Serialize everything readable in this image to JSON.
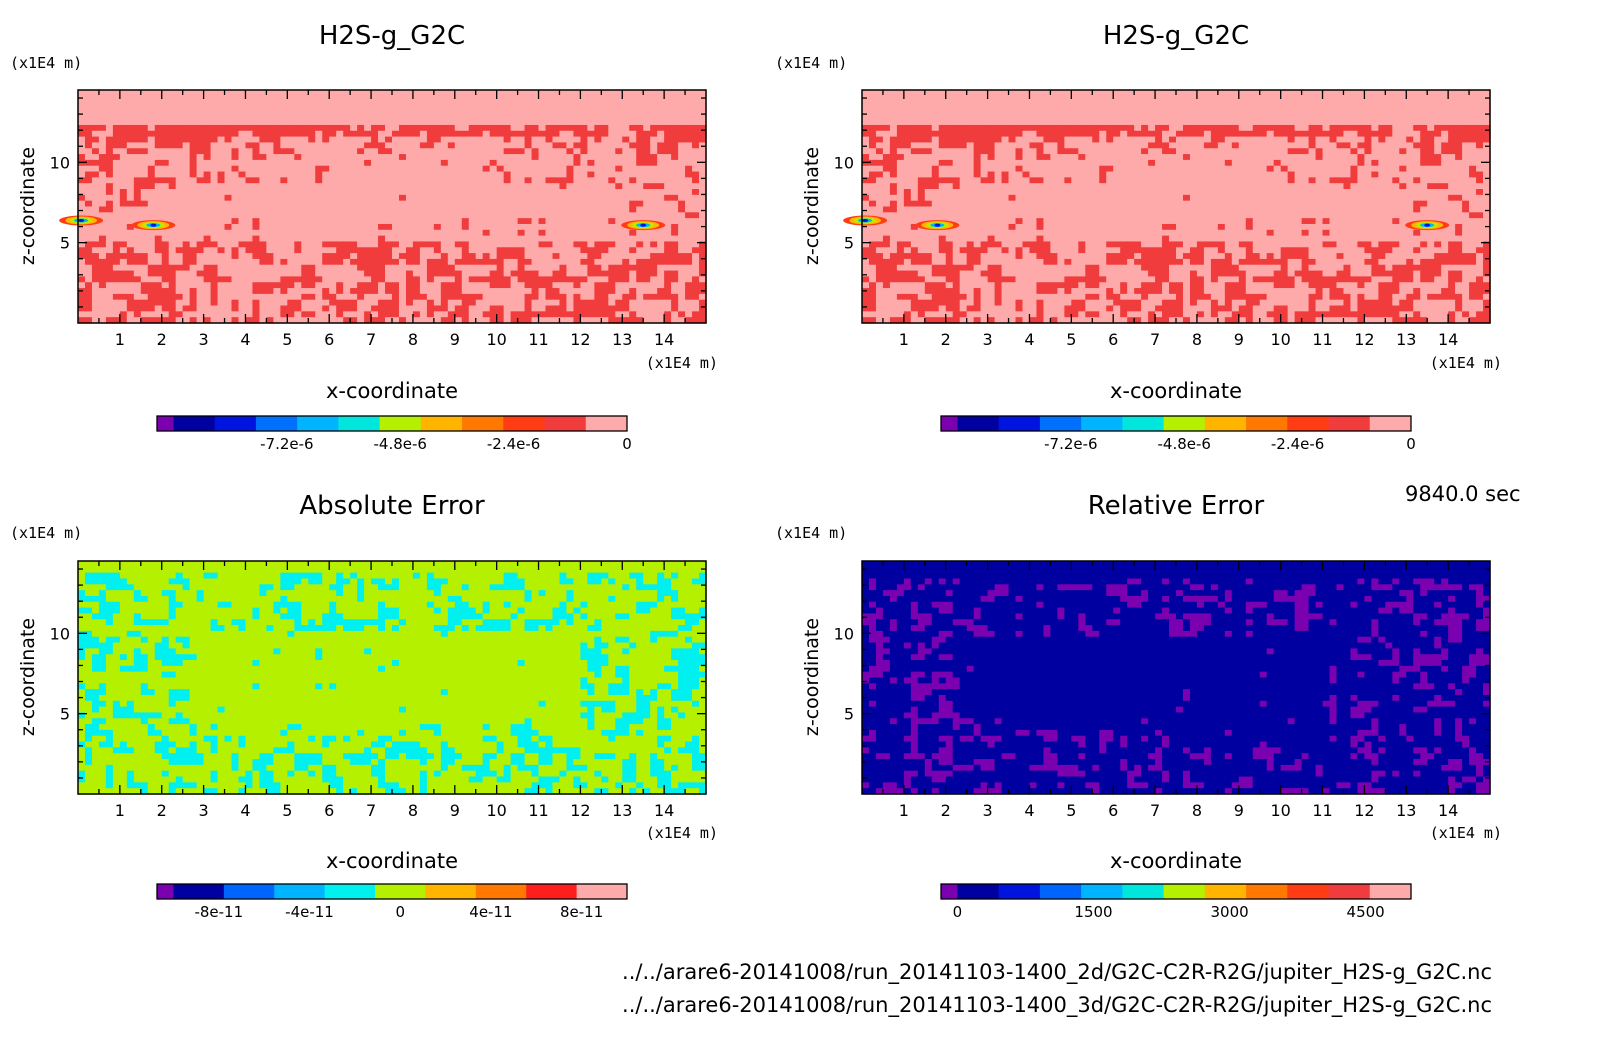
{
  "time_label": "9840.0 sec",
  "footer": {
    "file1": "../../arare6-20141008/run_20141103-1400_2d/G2C-C2R-R2G/jupiter_H2S-g_G2C.nc",
    "file2": "../../arare6-20141008/run_20141103-1400_3d/G2C-C2R-R2G/jupiter_H2S-g_G2C.nc"
  },
  "chart_data": [
    {
      "type": "heatmap",
      "title": "H2S-g_G2C",
      "xlabel": "x-coordinate",
      "ylabel": "z-coordinate",
      "x_unit": "(x1E4 m)",
      "y_unit": "(x1E4 m)",
      "xlim": [
        0,
        15
      ],
      "ylim": [
        0,
        14.5
      ],
      "x_ticks": [
        1,
        2,
        3,
        4,
        5,
        6,
        7,
        8,
        9,
        10,
        11,
        12,
        13,
        14
      ],
      "y_ticks": [
        5,
        10
      ],
      "pattern": "field",
      "colorbar": {
        "colors": [
          "#7a00b0",
          "#0000a0",
          "#0014e0",
          "#0070ff",
          "#00b4ff",
          "#00e6dc",
          "#b4f000",
          "#ffb400",
          "#ff7800",
          "#ff3c14",
          "#f03c3c",
          "#ffaaaa"
        ],
        "tick_labels": [
          "-7.2e-6",
          "-4.8e-6",
          "-2.4e-6",
          "0"
        ],
        "tick_values": [
          -7.2e-06,
          -4.8e-06,
          -2.4e-06,
          0
        ],
        "range": [
          -9.6e-06,
          0
        ]
      }
    },
    {
      "type": "heatmap",
      "title": "H2S-g_G2C",
      "xlabel": "x-coordinate",
      "ylabel": "z-coordinate",
      "x_unit": "(x1E4 m)",
      "y_unit": "(x1E4 m)",
      "xlim": [
        0,
        15
      ],
      "ylim": [
        0,
        14.5
      ],
      "x_ticks": [
        1,
        2,
        3,
        4,
        5,
        6,
        7,
        8,
        9,
        10,
        11,
        12,
        13,
        14
      ],
      "y_ticks": [
        5,
        10
      ],
      "pattern": "field",
      "colorbar": {
        "colors": [
          "#7a00b0",
          "#0000a0",
          "#0014e0",
          "#0070ff",
          "#00b4ff",
          "#00e6dc",
          "#b4f000",
          "#ffb400",
          "#ff7800",
          "#ff3c14",
          "#f03c3c",
          "#ffaaaa"
        ],
        "tick_labels": [
          "-7.2e-6",
          "-4.8e-6",
          "-2.4e-6",
          "0"
        ],
        "tick_values": [
          -7.2e-06,
          -4.8e-06,
          -2.4e-06,
          0
        ],
        "range": [
          -9.6e-06,
          0
        ]
      }
    },
    {
      "type": "heatmap",
      "title": "Absolute Error",
      "xlabel": "x-coordinate",
      "ylabel": "z-coordinate",
      "x_unit": "(x1E4 m)",
      "y_unit": "(x1E4 m)",
      "xlim": [
        0,
        15
      ],
      "ylim": [
        0,
        14.5
      ],
      "x_ticks": [
        1,
        2,
        3,
        4,
        5,
        6,
        7,
        8,
        9,
        10,
        11,
        12,
        13,
        14
      ],
      "y_ticks": [
        5,
        10
      ],
      "pattern": "abs",
      "colorbar": {
        "colors": [
          "#7a00b0",
          "#0000a0",
          "#0064ff",
          "#00b4ff",
          "#00f0f0",
          "#b4f000",
          "#ffb400",
          "#ff7800",
          "#ff1e1e",
          "#ffaaaa"
        ],
        "tick_labels": [
          "-8e-11",
          "-4e-11",
          "0",
          "4e-11",
          "8e-11"
        ],
        "tick_values": [
          -8e-11,
          -4e-11,
          0,
          4e-11,
          8e-11
        ],
        "range": [
          -1e-10,
          1e-10
        ]
      }
    },
    {
      "type": "heatmap",
      "title": "Relative Error",
      "xlabel": "x-coordinate",
      "ylabel": "z-coordinate",
      "x_unit": "(x1E4 m)",
      "y_unit": "(x1E4 m)",
      "xlim": [
        0,
        15
      ],
      "ylim": [
        0,
        14.5
      ],
      "x_ticks": [
        1,
        2,
        3,
        4,
        5,
        6,
        7,
        8,
        9,
        10,
        11,
        12,
        13,
        14
      ],
      "y_ticks": [
        5,
        10
      ],
      "pattern": "rel",
      "colorbar": {
        "colors": [
          "#7a00b0",
          "#0000a0",
          "#0014e0",
          "#0064ff",
          "#00b4ff",
          "#00e6dc",
          "#b4f000",
          "#ffb400",
          "#ff7800",
          "#ff3c14",
          "#f03c3c",
          "#ffaaaa"
        ],
        "tick_labels": [
          "0",
          "1500",
          "3000",
          "4500"
        ],
        "tick_values": [
          0,
          1500,
          3000,
          4500
        ],
        "range": [
          0,
          5000
        ]
      }
    }
  ]
}
